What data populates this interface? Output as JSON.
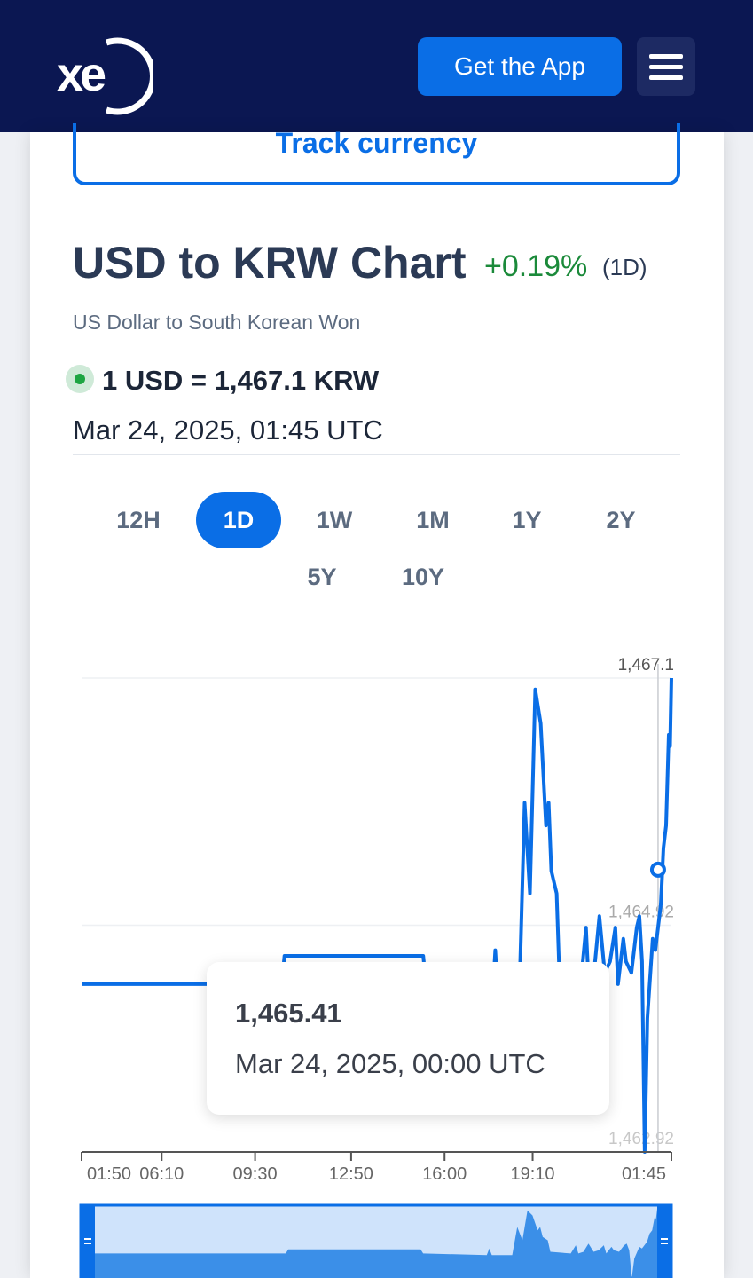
{
  "header": {
    "logo_text": "xe",
    "get_app_label": "Get the App",
    "menu_icon": "hamburger-menu-icon",
    "bg_color": "#0b1752",
    "accent_color": "#0a6ee6"
  },
  "track_button_label": "Track currency",
  "summary": {
    "title": "USD to KRW Chart",
    "change": "+0.19%",
    "period": "(1D)",
    "subtitle": "US Dollar to South Korean Won",
    "rate": "1 USD = 1,467.1 KRW",
    "timestamp": "Mar 24, 2025, 01:45 UTC",
    "positive_color": "#1b8a3a"
  },
  "ranges": [
    "12H",
    "1D",
    "1W",
    "1M",
    "1Y",
    "2Y",
    "5Y",
    "10Y"
  ],
  "active_range": "1D",
  "tooltip": {
    "value": "1,465.41",
    "date": "Mar 24, 2025, 00:00 UTC"
  },
  "chart_data": {
    "type": "line",
    "title": "",
    "xlabel": "",
    "ylabel": "",
    "x_ticks": [
      "01:50",
      "06:10",
      "09:30",
      "12:50",
      "16:00",
      "19:10",
      "01:45"
    ],
    "y_ticks": [
      "1,467.1",
      "1,464.92",
      "1,462.92"
    ],
    "ylim": [
      1462.92,
      1467.1
    ],
    "grid": true,
    "series": [
      {
        "color": "#0a6ee6",
        "points": [
          [
            0,
            1464.4
          ],
          [
            5.0,
            1464.4
          ],
          [
            7.5,
            1464.4
          ],
          [
            7.6,
            1464.65
          ],
          [
            12.8,
            1464.65
          ],
          [
            12.9,
            1464.4
          ],
          [
            15.4,
            1464.3
          ],
          [
            15.5,
            1464.7
          ],
          [
            15.6,
            1464.3
          ],
          [
            16.4,
            1464.3
          ],
          [
            16.6,
            1466.0
          ],
          [
            16.8,
            1465.2
          ],
          [
            17.0,
            1467.0
          ],
          [
            17.2,
            1466.7
          ],
          [
            17.4,
            1465.8
          ],
          [
            17.5,
            1466.0
          ],
          [
            17.6,
            1465.4
          ],
          [
            17.8,
            1465.2
          ],
          [
            17.9,
            1464.5
          ],
          [
            18.7,
            1464.4
          ],
          [
            18.9,
            1464.9
          ],
          [
            19.0,
            1464.4
          ],
          [
            19.2,
            1464.5
          ],
          [
            19.4,
            1465.0
          ],
          [
            19.6,
            1464.5
          ],
          [
            19.8,
            1464.6
          ],
          [
            20.0,
            1464.9
          ],
          [
            20.1,
            1464.4
          ],
          [
            20.3,
            1464.8
          ],
          [
            20.4,
            1464.6
          ],
          [
            20.6,
            1464.5
          ],
          [
            20.8,
            1464.9
          ],
          [
            20.9,
            1465.0
          ],
          [
            21.0,
            1464.6
          ],
          [
            21.1,
            1462.92
          ],
          [
            21.2,
            1464.1
          ],
          [
            21.4,
            1464.8
          ],
          [
            21.5,
            1464.7
          ],
          [
            21.7,
            1465.1
          ],
          [
            21.8,
            1465.6
          ],
          [
            21.9,
            1465.8
          ],
          [
            22.0,
            1466.6
          ],
          [
            22.05,
            1466.5
          ],
          [
            22.1,
            1467.1
          ]
        ]
      }
    ],
    "crosshair_value": 1465.41
  },
  "navigator": {
    "handle_icon": "drag-handle-icon"
  }
}
